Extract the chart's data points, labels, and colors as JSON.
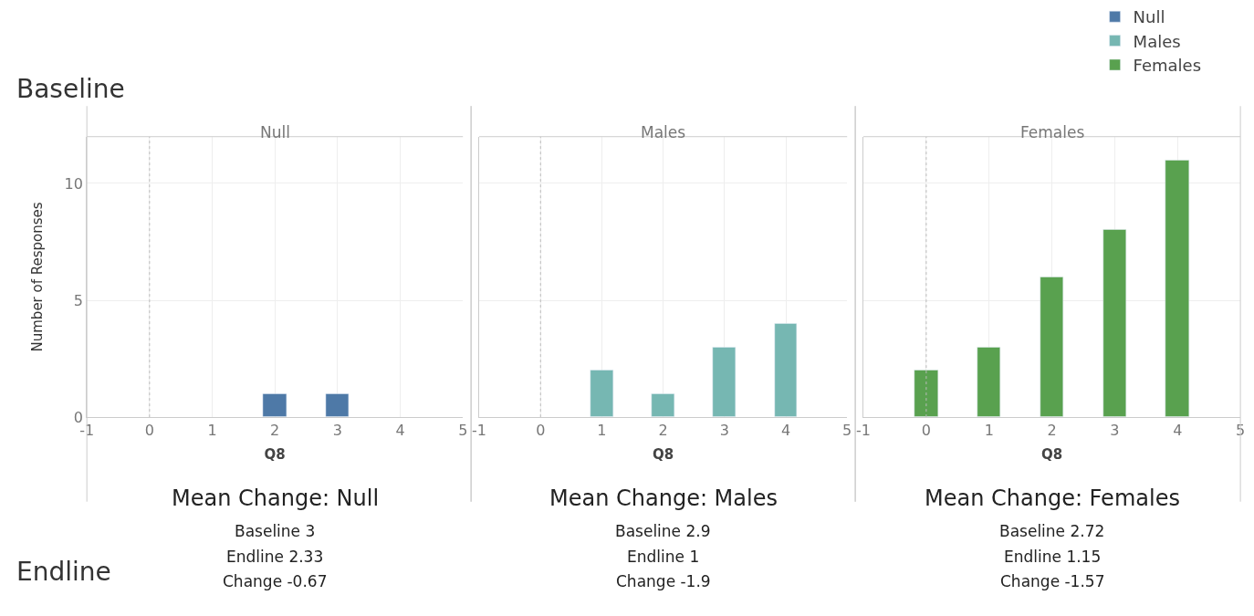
{
  "chart_data": [
    {
      "type": "bar",
      "title": "Null",
      "xlabel": "Q8",
      "ylabel": "Number of Responses",
      "x": [
        2,
        3
      ],
      "series": [
        {
          "name": "Null",
          "color": "#4e79a7",
          "values": [
            1,
            1
          ]
        }
      ],
      "xlim": [
        -1,
        5
      ],
      "xticks": [
        -1,
        0,
        1,
        2,
        3,
        4,
        5
      ],
      "ylim": [
        0,
        12
      ],
      "yticks": [
        0,
        5,
        10
      ],
      "grid": true,
      "legend": "top right",
      "ref_lines": [
        {
          "axis": "x",
          "value": 0,
          "color": "#bbbbbb",
          "line_style": "dotted"
        }
      ],
      "annotations": [
        "Mean Change: Null",
        "Baseline 3",
        "Endline 2.33",
        "Change -0.67",
        "Baseline",
        "Endline"
      ]
    },
    {
      "type": "bar",
      "title": "Males",
      "xlabel": "Q8",
      "x": [
        1,
        2,
        3,
        4
      ],
      "series": [
        {
          "name": "Males",
          "color": "#76b7b2",
          "values": [
            2,
            1,
            3,
            4
          ]
        }
      ],
      "xlim": [
        -1,
        5
      ],
      "xticks": [
        -1,
        0,
        1,
        2,
        3,
        4,
        5
      ],
      "ylim": [
        0,
        12
      ],
      "yticks": [
        0,
        5,
        10
      ],
      "grid": true,
      "legend": "top right",
      "tick_labels": "x",
      "ref_lines": [
        {
          "axis": "x",
          "value": 0,
          "color": "#bbbbbb",
          "line_style": "dotted"
        }
      ],
      "annotations": [
        "Mean Change: Males",
        "Baseline 2.9",
        "Endline 1",
        "Change -1.9"
      ]
    },
    {
      "type": "bar",
      "title": "Females",
      "xlabel": "Q8",
      "x": [
        0,
        1,
        2,
        3,
        4
      ],
      "series": [
        {
          "name": "Females",
          "color": "#59a14f",
          "values": [
            2,
            3,
            6,
            8,
            11
          ]
        }
      ],
      "xlim": [
        -1,
        5
      ],
      "xticks": [
        -1,
        0,
        1,
        2,
        3,
        4,
        5
      ],
      "ylim": [
        0,
        12
      ],
      "yticks": [
        0,
        5,
        10
      ],
      "grid": true,
      "legend": "top right",
      "tick_labels": "x",
      "ref_lines": [
        {
          "axis": "x",
          "value": 0,
          "color": "#bbbbbb",
          "line_style": "dotted"
        }
      ],
      "annotations": [
        "Mean Change: Females",
        "Baseline 2.72",
        "Endline 1.15",
        "Change -1.57"
      ]
    }
  ]
}
